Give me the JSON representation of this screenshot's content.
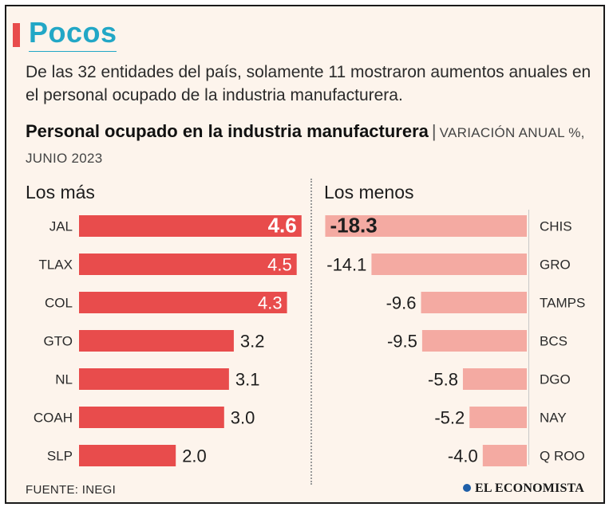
{
  "kicker": "Pocos",
  "dek": "De las 32 entidades del país, solamente 11 mostraron aumentos anuales en el personal ocupado de la industria manufacturera.",
  "chart_title": {
    "main": "Personal ocupado en la industria manufacturera",
    "separator": "|",
    "subtitle": "VARIACIÓN ANUAL %, JUNIO 2023"
  },
  "footer": {
    "source": "FUENTE: INEGI",
    "logo": "EL ECONOMISTA"
  },
  "colors": {
    "top_bar": "#e84c4c",
    "bottom_bar": "#f4aaa2",
    "kicker": "#22a7c6"
  },
  "chart_data": [
    {
      "type": "bar",
      "orientation": "horizontal",
      "title": "Los más",
      "categories": [
        "JAL",
        "TLAX",
        "COL",
        "GTO",
        "NL",
        "COAH",
        "SLP"
      ],
      "values": [
        4.6,
        4.5,
        4.3,
        3.2,
        3.1,
        3.0,
        2.0
      ],
      "labels": [
        "4.6",
        "4.5",
        "4.3",
        "3.2",
        "3.1",
        "3.0",
        "2.0"
      ],
      "unit": "%"
    },
    {
      "type": "bar",
      "orientation": "horizontal",
      "title": "Los menos",
      "categories": [
        "CHIS",
        "GRO",
        "TAMPS",
        "BCS",
        "DGO",
        "NAY",
        "Q ROO"
      ],
      "values": [
        -18.3,
        -14.1,
        -9.6,
        -9.5,
        -5.8,
        -5.2,
        -4.0
      ],
      "labels": [
        "-18.3",
        "-14.1",
        "-9.6",
        "-9.5",
        "-5.8",
        "-5.2",
        "-4.0"
      ],
      "unit": "%"
    }
  ]
}
